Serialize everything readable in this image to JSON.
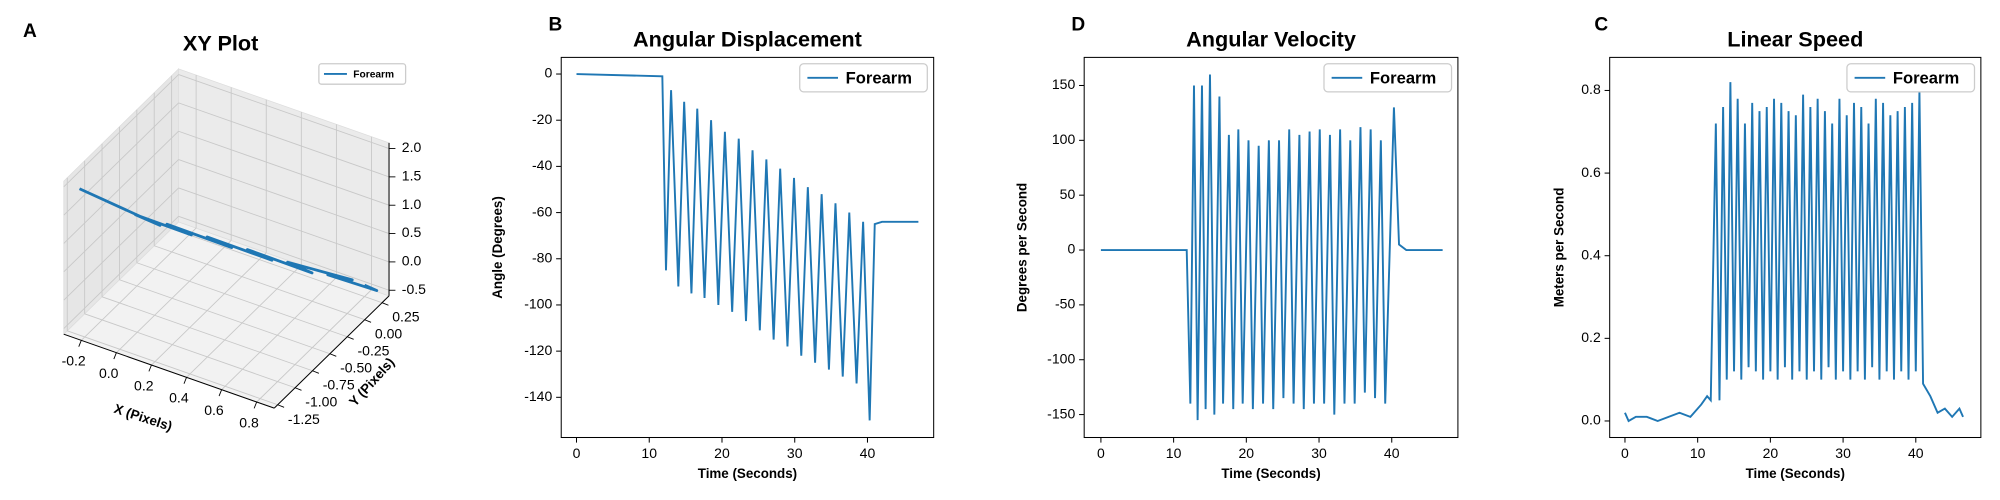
{
  "chart_data": [
    {
      "type": "line3d",
      "panel_label": "A",
      "title": "XY Plot",
      "xlabel": "X (Pixels)",
      "ylabel": "Y (Pixels)",
      "series": [
        {
          "name": "Forearm",
          "color": "#1f77b4",
          "x": [
            -0.25,
            -0.1,
            0.05,
            -0.05,
            0.15,
            0.05,
            0.3,
            0.2,
            0.45,
            0.35,
            0.6,
            0.5,
            0.75,
            0.65,
            0.85,
            0.8
          ],
          "y": [
            -1.2,
            -1.0,
            -0.8,
            -0.9,
            -0.6,
            -0.7,
            -0.4,
            -0.5,
            -0.2,
            -0.3,
            0.0,
            -0.1,
            0.2,
            0.1,
            0.3,
            0.25
          ],
          "z": [
            1.9,
            1.5,
            1.1,
            1.3,
            0.8,
            1.0,
            0.5,
            0.7,
            0.2,
            0.4,
            -0.1,
            0.1,
            -0.3,
            -0.2,
            -0.5,
            -0.4
          ]
        }
      ],
      "xlim": [
        -0.3,
        0.9
      ],
      "ylim": [
        -1.3,
        0.35
      ],
      "zlim": [
        -0.6,
        2.1
      ],
      "xticks": [
        -0.2,
        {
          "value": 0,
          "label": "0.0"
        },
        0.2,
        0.4,
        0.6,
        0.8
      ],
      "yticks": [
        -1.25,
        {
          "value": -1,
          "label": "-1.00"
        },
        -0.75,
        {
          "value": -0.5,
          "label": "-0.50"
        },
        -0.25,
        {
          "value": 0,
          "label": "0.00"
        },
        0.25
      ],
      "zticks": [
        -0.5,
        {
          "value": 0,
          "label": "0.0"
        },
        0.5,
        {
          "value": 1,
          "label": "1.0"
        },
        1.5,
        {
          "value": 2,
          "label": "2.0"
        }
      ],
      "grid": true,
      "legend": "upper right"
    },
    {
      "type": "line",
      "panel_label": "B",
      "title": "Angular Displacement",
      "xlabel": "Time (Seconds)",
      "ylabel": "Angle (Degrees)",
      "x": [
        0,
        11.8,
        12.3,
        13,
        14,
        14.8,
        15.8,
        16.6,
        17.6,
        18.5,
        19.5,
        20.4,
        21.4,
        22.3,
        23.3,
        24.2,
        25.2,
        26.1,
        27.1,
        28,
        29,
        29.9,
        30.9,
        31.8,
        32.8,
        33.7,
        34.7,
        35.6,
        36.6,
        37.5,
        38.5,
        39.4,
        40.3,
        41,
        42,
        47
      ],
      "series": [
        {
          "name": "Forearm",
          "color": "#1f77b4",
          "values": [
            0,
            -1,
            -85,
            -7,
            -92,
            -12,
            -95,
            -15,
            -97,
            -20,
            -100,
            -25,
            -103,
            -28,
            -107,
            -33,
            -111,
            -37,
            -115,
            -41,
            -118,
            -45,
            -122,
            -49,
            -125,
            -52,
            -128,
            -56,
            -131,
            -60,
            -134,
            -64,
            -150,
            -65,
            -64,
            -64
          ]
        }
      ],
      "xlim": [
        -2.1,
        49.1
      ],
      "ylim": [
        -157.4,
        7.2
      ],
      "xticks": [
        0,
        10,
        20,
        30,
        40
      ],
      "yticks": [
        0,
        -20,
        -40,
        -60,
        -80,
        -100,
        -120,
        -140
      ],
      "legend": "upper right"
    },
    {
      "type": "line",
      "panel_label": "D",
      "title": "Angular Velocity",
      "xlabel": "Time (Seconds)",
      "ylabel": "Degrees per Second",
      "x": [
        0,
        11.8,
        12.3,
        12.8,
        13.3,
        13.9,
        14.4,
        15,
        15.6,
        16.3,
        16.8,
        17.6,
        18.2,
        18.9,
        19.5,
        20.3,
        20.9,
        21.7,
        22.3,
        23.1,
        23.7,
        24.5,
        25.1,
        25.9,
        26.5,
        27.3,
        27.9,
        28.7,
        29.3,
        30.1,
        30.7,
        31.5,
        32.1,
        32.9,
        33.5,
        34.3,
        34.9,
        35.7,
        36.3,
        37.1,
        37.7,
        38.5,
        39.1,
        40.3,
        41,
        42,
        47
      ],
      "series": [
        {
          "name": "Forearm",
          "color": "#1f77b4",
          "values": [
            0,
            0,
            -140,
            150,
            -155,
            150,
            -145,
            160,
            -150,
            140,
            -140,
            105,
            -145,
            110,
            -140,
            100,
            -145,
            95,
            -140,
            100,
            -145,
            100,
            -135,
            110,
            -140,
            105,
            -145,
            108,
            -140,
            110,
            -140,
            105,
            -150,
            110,
            -140,
            100,
            -140,
            112,
            -130,
            110,
            -135,
            100,
            -140,
            130,
            5,
            0,
            0
          ]
        }
      ],
      "xlim": [
        -2.3,
        49.1
      ],
      "ylim": [
        -170.9,
        175.6
      ],
      "xticks": [
        0,
        10,
        20,
        30,
        40
      ],
      "yticks": [
        -150,
        -100,
        -50,
        0,
        50,
        100,
        150
      ],
      "legend": "upper right"
    },
    {
      "type": "line",
      "panel_label": "C",
      "title": "Linear Speed",
      "xlabel": "Time (Seconds)",
      "ylabel": "Meters per Second",
      "x": [
        0,
        0.5,
        1.5,
        3,
        4.5,
        6,
        7.5,
        9,
        10.5,
        11.3,
        11.8,
        12.5,
        13,
        13.5,
        14,
        14.5,
        15,
        15.5,
        16,
        16.5,
        17,
        17.5,
        18,
        18.5,
        19,
        19.5,
        20,
        20.5,
        21,
        21.5,
        22,
        22.5,
        23,
        23.5,
        24,
        24.5,
        25,
        25.5,
        26,
        26.5,
        27,
        27.5,
        28,
        28.5,
        29,
        29.5,
        30,
        30.5,
        31,
        31.5,
        32,
        32.5,
        33,
        33.5,
        34,
        34.5,
        35,
        35.5,
        36,
        36.5,
        37,
        37.5,
        38,
        38.5,
        39,
        39.5,
        40,
        40.5,
        41,
        42,
        43,
        44,
        45,
        46,
        46.5
      ],
      "series": [
        {
          "name": "Forearm",
          "color": "#1f77b4",
          "values": [
            0.02,
            0,
            0.01,
            0.01,
            0,
            0.01,
            0.02,
            0.01,
            0.04,
            0.06,
            0.05,
            0.72,
            0.05,
            0.76,
            0.1,
            0.82,
            0.12,
            0.78,
            0.1,
            0.72,
            0.13,
            0.77,
            0.12,
            0.75,
            0.1,
            0.76,
            0.12,
            0.78,
            0.1,
            0.77,
            0.13,
            0.75,
            0.1,
            0.74,
            0.12,
            0.79,
            0.1,
            0.76,
            0.12,
            0.78,
            0.1,
            0.75,
            0.13,
            0.72,
            0.1,
            0.78,
            0.12,
            0.74,
            0.1,
            0.77,
            0.12,
            0.76,
            0.1,
            0.72,
            0.13,
            0.78,
            0.1,
            0.77,
            0.12,
            0.74,
            0.1,
            0.75,
            0.12,
            0.76,
            0.1,
            0.77,
            0.12,
            0.8,
            0.09,
            0.06,
            0.02,
            0.03,
            0.01,
            0.03,
            0.01
          ]
        }
      ],
      "xlim": [
        -2.1,
        48.95
      ],
      "ylim": [
        -0.04,
        0.88
      ],
      "xticks": [
        0,
        10,
        20,
        30,
        40
      ],
      "yticks": [
        {
          "value": 0,
          "label": "0.0"
        },
        0.2,
        0.4,
        0.6,
        0.8
      ],
      "legend": "upper right"
    }
  ]
}
